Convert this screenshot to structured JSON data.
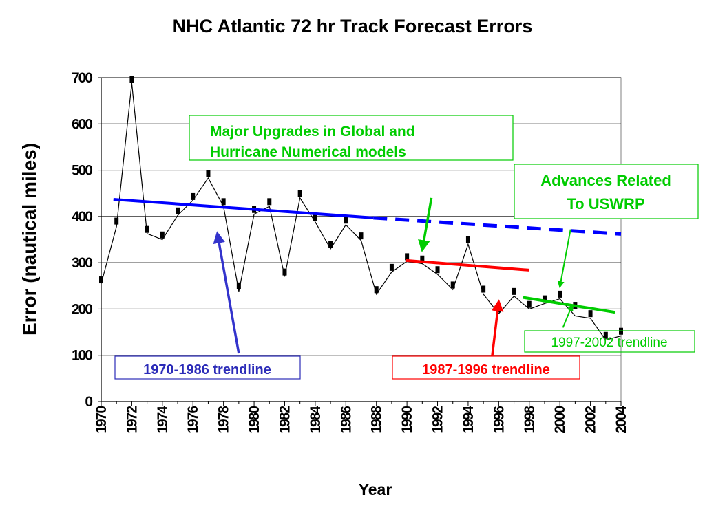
{
  "chart_data": {
    "type": "line",
    "title": "NHC Atlantic 72 hr Track Forecast Errors",
    "xlabel": "Year",
    "ylabel": "Error (nautical miles)",
    "xlim": [
      1970,
      2004
    ],
    "ylim": [
      0,
      700
    ],
    "yticks": [
      0,
      100,
      200,
      300,
      400,
      500,
      600,
      700
    ],
    "xticks": [
      1970,
      1972,
      1974,
      1976,
      1978,
      1980,
      1982,
      1984,
      1986,
      1988,
      1990,
      1992,
      1994,
      1996,
      1998,
      2000,
      2002,
      2004
    ],
    "grid": true,
    "series": [
      {
        "name": "",
        "kind": "markers",
        "color": "#000000",
        "x": [
          1970,
          1971,
          1972,
          1973,
          1974,
          1975,
          1976,
          1977,
          1978,
          1979,
          1980,
          1981,
          1982,
          1983,
          1984,
          1985,
          1986,
          1987,
          1988,
          1989,
          1990,
          1991,
          1992,
          1993,
          1994,
          1995,
          1996,
          1997,
          1998,
          1999,
          2000,
          2001,
          2002,
          2003,
          2004
        ],
        "y": [
          263,
          390,
          696,
          372,
          360,
          412,
          443,
          493,
          432,
          250,
          415,
          432,
          280,
          450,
          398,
          340,
          392,
          358,
          242,
          290,
          313,
          308,
          285,
          252,
          350,
          243,
          200,
          238,
          210,
          222,
          232,
          208,
          190,
          143,
          152
        ]
      },
      {
        "name": "",
        "kind": "line",
        "color": "#000000",
        "x": [
          1970,
          1971,
          1972,
          1973,
          1974,
          1975,
          1976,
          1977,
          1978,
          1979,
          1980,
          1981,
          1982,
          1983,
          1984,
          1985,
          1986,
          1987,
          1988,
          1989,
          1990,
          1991,
          1992,
          1993,
          1994,
          1995,
          1996,
          1997,
          1998,
          1999,
          2000,
          2001,
          2002,
          2003,
          2004
        ],
        "y": [
          255,
          378,
          688,
          363,
          350,
          402,
          435,
          483,
          422,
          238,
          405,
          422,
          270,
          440,
          388,
          330,
          382,
          348,
          232,
          280,
          303,
          298,
          275,
          242,
          340,
          232,
          190,
          228,
          200,
          212,
          222,
          185,
          180,
          133,
          142
        ]
      },
      {
        "name": "",
        "kind": "trend",
        "color": "#0000ff",
        "x": [
          1970.8,
          1987.8
        ],
        "y": [
          437,
          397
        ]
      },
      {
        "name": "",
        "kind": "trend-dashed",
        "color": "#0000ff",
        "x": [
          1987.8,
          2004
        ],
        "y": [
          397,
          362
        ]
      },
      {
        "name": "",
        "kind": "trend",
        "color": "#ff0000",
        "x": [
          1989.9,
          1998
        ],
        "y": [
          305,
          284
        ]
      },
      {
        "name": "",
        "kind": "trend",
        "color": "#00cc00",
        "x": [
          1997.6,
          2003.6
        ],
        "y": [
          225,
          193
        ]
      }
    ],
    "annotations": [
      {
        "id": "major-upgrades",
        "lines": [
          "Major Upgrades in Global and",
          "Hurricane Numerical models"
        ],
        "color": "#00cc00",
        "arrow_color": "#00cc00",
        "arrow_from": [
          1991.6,
          440
        ],
        "arrow_to": [
          1991.0,
          328
        ]
      },
      {
        "id": "uswrp",
        "lines": [
          "Advances Related",
          "To USWRP"
        ],
        "color": "#00cc00",
        "arrow_color": "#00cc00",
        "arrow_from": [
          2000.7,
          372
        ],
        "arrow_to": [
          2000.0,
          248
        ]
      },
      {
        "id": "trend-1970-1986",
        "lines": [
          "1970-1986 trendline"
        ],
        "color": "#2b2bb8",
        "arrow_color": "#3333cc",
        "arrow_from": [
          1979.0,
          104
        ],
        "arrow_to": [
          1977.6,
          363
        ]
      },
      {
        "id": "trend-1987-1996",
        "lines": [
          "1987-1996 trendline"
        ],
        "color": "#ff0000",
        "arrow_color": "#ff0000",
        "arrow_from": [
          1995.5,
          78
        ],
        "arrow_to": [
          1996.0,
          216
        ]
      },
      {
        "id": "trend-1997-2002",
        "lines": [
          "1997-2002 trendline"
        ],
        "color": "#00cc00",
        "arrow_color": "#00cc00",
        "arrow_from": [
          2000.2,
          160
        ],
        "arrow_to": [
          2000.8,
          208
        ]
      }
    ]
  }
}
